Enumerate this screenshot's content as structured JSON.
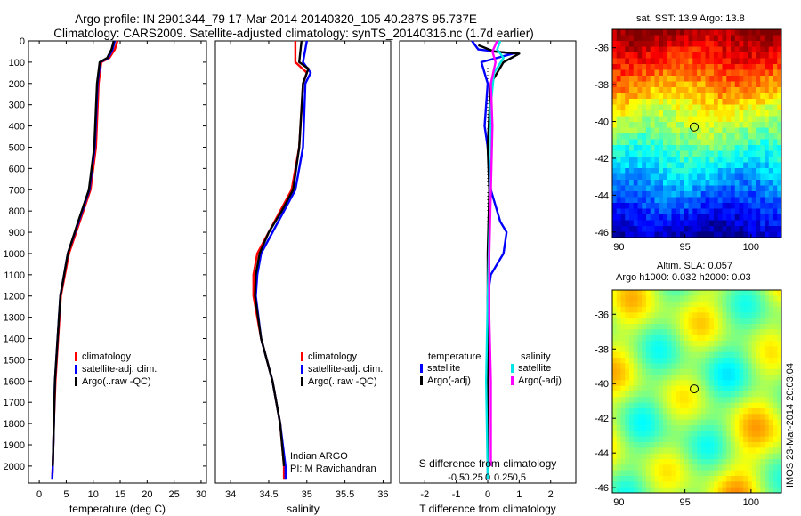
{
  "title_line1": "Argo profile: IN 2901344_79 17-Mar-2014 20140320_105 40.287S 95.737E",
  "title_line2": "Climatology: CARS2009. Satellite-adjusted climatology: synTS_20140316.nc (1.7d earlier)",
  "credit_line1": "Indian ARGO",
  "credit_line2": "PI: M Ravichandran",
  "timestamp": "IMOS 23-Mar-2014 20:03:04",
  "map1_title": "sat. SST: 13.9 Argo: 13.8",
  "map2_title_line1": "Altim. SLA: 0.057",
  "map2_title_line2": "Argo h1000: 0.032 h2000: 0.03",
  "colors": {
    "climatology": "#ff0000",
    "satellite": "#0000ff",
    "argo": "#000000",
    "sal_satellite": "#00e5e5",
    "sal_argo": "#ff00ff"
  },
  "chart_data": [
    {
      "type": "line",
      "xlabel": "temperature (deg C)",
      "ylabel": "",
      "xlim": [
        -2,
        31
      ],
      "ylim": [
        2080,
        0
      ],
      "xticks": [
        0,
        5,
        10,
        15,
        20,
        25,
        30
      ],
      "yticks": [
        0,
        100,
        200,
        300,
        400,
        500,
        600,
        700,
        800,
        900,
        1000,
        1100,
        1200,
        1300,
        1400,
        1500,
        1600,
        1700,
        1800,
        1900,
        2000
      ],
      "legend": [
        "climatology",
        "satellite-adj. clim.",
        "Argo(..raw -QC)"
      ],
      "series": [
        {
          "name": "climatology",
          "color": "#ff0000",
          "points": [
            [
              14.5,
              0
            ],
            [
              14.0,
              40
            ],
            [
              13.0,
              80
            ],
            [
              11.5,
              100
            ],
            [
              11.0,
              200
            ],
            [
              10.5,
              500
            ],
            [
              9.5,
              700
            ],
            [
              7.5,
              850
            ],
            [
              5.5,
              1000
            ],
            [
              4.0,
              1200
            ],
            [
              3.5,
              1400
            ],
            [
              3.0,
              1600
            ],
            [
              2.7,
              1800
            ],
            [
              2.5,
              2000
            ],
            [
              2.4,
              2060
            ]
          ]
        },
        {
          "name": "satellite-adj. clim.",
          "color": "#0000ff",
          "points": [
            [
              14.0,
              0
            ],
            [
              13.6,
              40
            ],
            [
              12.8,
              80
            ],
            [
              11.3,
              100
            ],
            [
              10.8,
              200
            ],
            [
              10.3,
              500
            ],
            [
              9.3,
              700
            ],
            [
              7.3,
              850
            ],
            [
              5.3,
              1000
            ],
            [
              3.9,
              1200
            ],
            [
              3.4,
              1400
            ],
            [
              2.9,
              1600
            ],
            [
              2.7,
              1800
            ],
            [
              2.5,
              2000
            ],
            [
              2.4,
              2060
            ]
          ]
        },
        {
          "name": "Argo(..raw -QC)",
          "color": "#000000",
          "points": [
            [
              13.8,
              0
            ],
            [
              13.4,
              40
            ],
            [
              12.6,
              80
            ],
            [
              11.2,
              100
            ],
            [
              10.7,
              200
            ],
            [
              10.2,
              500
            ],
            [
              9.2,
              700
            ],
            [
              7.2,
              850
            ],
            [
              5.3,
              1000
            ],
            [
              3.9,
              1200
            ],
            [
              3.4,
              1400
            ],
            [
              2.9,
              1600
            ],
            [
              2.7,
              1800
            ],
            [
              2.5,
              2000
            ]
          ]
        }
      ]
    },
    {
      "type": "line",
      "xlabel": "salinity",
      "ylabel": "",
      "xlim": [
        33.8,
        36.1
      ],
      "ylim": [
        2080,
        0
      ],
      "xticks": [
        34,
        34.5,
        35,
        35.5,
        36
      ],
      "xtick_labels": [
        "34",
        "34.5",
        "35",
        "35.5",
        "36"
      ],
      "legend": [
        "climatology",
        "satellite-adj. clim.",
        "Argo(..raw -QC)"
      ],
      "series": [
        {
          "name": "climatology",
          "color": "#ff0000",
          "points": [
            [
              34.85,
              0
            ],
            [
              34.85,
              100
            ],
            [
              35.0,
              150
            ],
            [
              34.95,
              200
            ],
            [
              34.9,
              500
            ],
            [
              34.8,
              700
            ],
            [
              34.65,
              800
            ],
            [
              34.5,
              900
            ],
            [
              34.35,
              1000
            ],
            [
              34.3,
              1100
            ],
            [
              34.3,
              1200
            ],
            [
              34.4,
              1400
            ],
            [
              34.55,
              1600
            ],
            [
              34.65,
              1800
            ],
            [
              34.7,
              2000
            ],
            [
              34.7,
              2060
            ]
          ]
        },
        {
          "name": "satellite-adj. clim.",
          "color": "#0000ff",
          "points": [
            [
              35.0,
              0
            ],
            [
              34.95,
              100
            ],
            [
              35.05,
              150
            ],
            [
              34.98,
              200
            ],
            [
              34.95,
              500
            ],
            [
              34.85,
              700
            ],
            [
              34.7,
              800
            ],
            [
              34.55,
              900
            ],
            [
              34.4,
              1000
            ],
            [
              34.35,
              1100
            ],
            [
              34.33,
              1200
            ],
            [
              34.4,
              1400
            ],
            [
              34.55,
              1600
            ],
            [
              34.65,
              1800
            ],
            [
              34.72,
              2000
            ],
            [
              34.72,
              2060
            ]
          ]
        },
        {
          "name": "Argo(..raw -QC)",
          "color": "#000000",
          "points": [
            [
              34.93,
              0
            ],
            [
              34.9,
              100
            ],
            [
              35.02,
              130
            ],
            [
              34.95,
              200
            ],
            [
              34.9,
              500
            ],
            [
              34.82,
              700
            ],
            [
              34.67,
              800
            ],
            [
              34.5,
              900
            ],
            [
              34.38,
              1000
            ],
            [
              34.33,
              1100
            ],
            [
              34.32,
              1200
            ],
            [
              34.4,
              1400
            ],
            [
              34.55,
              1600
            ],
            [
              34.65,
              1800
            ],
            [
              34.7,
              2000
            ]
          ]
        }
      ]
    },
    {
      "type": "line",
      "xlabel": "T difference from climatology",
      "xlabel2": "S difference from climatology",
      "xlim": [
        -2.8,
        2.8
      ],
      "ylim": [
        2080,
        0
      ],
      "xticks": [
        -2,
        -1,
        0,
        1,
        2
      ],
      "xticks_top": [
        -0.5,
        -0.25,
        0,
        0.25,
        0.5
      ],
      "xticks_top_labels": [
        "-0.5",
        "-0.25",
        "0",
        "0.25",
        "0.5"
      ],
      "legend_headers": [
        "temperature",
        "salinity"
      ],
      "legend": [
        "satellite",
        "Argo(-adj)",
        "satellite",
        "Argo(-adj)"
      ],
      "series": [
        {
          "name": "temperature satellite",
          "color": "#0000ff",
          "points": [
            [
              -0.5,
              0
            ],
            [
              -0.3,
              40
            ],
            [
              0.8,
              60
            ],
            [
              -0.2,
              100
            ],
            [
              0,
              200
            ],
            [
              -0.1,
              400
            ],
            [
              0,
              500
            ],
            [
              0.1,
              700
            ],
            [
              0.4,
              850
            ],
            [
              0.6,
              900
            ],
            [
              0.5,
              1000
            ],
            [
              0.1,
              1100
            ],
            [
              0,
              1200
            ],
            [
              0,
              1500
            ],
            [
              0,
              2000
            ],
            [
              0,
              2060
            ]
          ]
        },
        {
          "name": "temperature Argo(-adj)",
          "color": "#000000",
          "points": [
            [
              -0.3,
              20
            ],
            [
              0.2,
              50
            ],
            [
              1.0,
              60
            ],
            [
              0.5,
              100
            ],
            [
              0.1,
              200
            ],
            [
              0,
              500
            ],
            [
              0.05,
              700
            ],
            [
              0,
              1000
            ],
            [
              0,
              1500
            ],
            [
              0,
              2000
            ]
          ]
        },
        {
          "name": "salinity satellite",
          "color": "#00e5e5",
          "points": [
            [
              0.4,
              0
            ],
            [
              0.3,
              40
            ],
            [
              0.5,
              80
            ],
            [
              0.2,
              150
            ],
            [
              0.1,
              300
            ],
            [
              0.1,
              600
            ],
            [
              0.05,
              900
            ],
            [
              0,
              1200
            ],
            [
              -0.05,
              1600
            ],
            [
              0,
              2060
            ]
          ]
        },
        {
          "name": "salinity Argo(-adj)",
          "color": "#ff00ff",
          "points": [
            [
              0.3,
              0
            ],
            [
              0.15,
              50
            ],
            [
              0.25,
              100
            ],
            [
              0.1,
              200
            ],
            [
              0.15,
              400
            ],
            [
              0.1,
              700
            ],
            [
              0.05,
              1000
            ],
            [
              0.05,
              1300
            ],
            [
              0.1,
              1600
            ],
            [
              0.1,
              2000
            ]
          ]
        }
      ]
    },
    {
      "type": "heatmap",
      "title": "sat. SST: 13.9 Argo: 13.8",
      "xlim": [
        89.5,
        102.3
      ],
      "ylim": [
        -46.3,
        -35
      ],
      "xticks": [
        90,
        95,
        100
      ],
      "yticks": [
        -36,
        -38,
        -40,
        -42,
        -44,
        -46
      ],
      "marker": [
        95.7,
        -40.3
      ]
    },
    {
      "type": "heatmap",
      "title": "Altim. SLA: 0.057",
      "xlim": [
        89.5,
        102.3
      ],
      "ylim": [
        -46.3,
        -34.6
      ],
      "xticks": [
        90,
        95,
        100
      ],
      "yticks": [
        -36,
        -38,
        -40,
        -42,
        -44,
        -46
      ],
      "marker": [
        95.7,
        -40.3
      ]
    }
  ]
}
